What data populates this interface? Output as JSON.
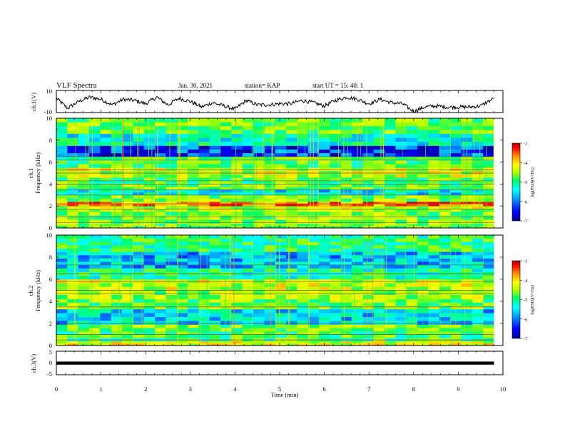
{
  "header": {
    "title": "VLF Spectra",
    "date": "Jan. 30, 2021",
    "station": "station= KAP",
    "start": "start  UT =   15: 40: 1"
  },
  "colors": {
    "waveform": "#000000",
    "axes": "#000000",
    "background": "#ffffff",
    "colormap": [
      "#00008f",
      "#0000ff",
      "#00aaff",
      "#00ffff",
      "#00ff66",
      "#aaff00",
      "#ffff00",
      "#ff8800",
      "#ff0000",
      "#aa0000"
    ]
  },
  "chart_data": [
    {
      "type": "line",
      "name": "ch1-waveform",
      "ylabel": "ch.1(V)",
      "ylim": [
        -10,
        10
      ],
      "yticks": [
        "10",
        "-10"
      ],
      "xlim": [
        0,
        9.8
      ],
      "x_min": [
        0,
        0.25,
        0.5,
        0.75,
        1.0,
        1.25,
        1.5,
        1.75,
        2.0,
        2.25,
        2.5,
        2.75,
        3.0,
        3.25,
        3.5,
        3.75,
        4.0,
        4.25,
        4.5,
        4.75,
        5.0,
        5.25,
        5.5,
        5.75,
        6.0,
        6.25,
        6.5,
        6.75,
        7.0,
        7.25,
        7.5,
        7.75,
        8.0,
        8.25,
        8.5,
        8.75,
        9.0,
        9.25,
        9.5,
        9.8
      ],
      "y": [
        3,
        -6,
        0,
        4,
        2,
        -3,
        2,
        1,
        -2,
        4,
        -3,
        3,
        0,
        -5,
        -1,
        -4,
        -7,
        1,
        -3,
        -3,
        -2,
        -2,
        1,
        -1,
        -4,
        1,
        4,
        2,
        -2,
        2,
        -1,
        -2,
        -9,
        -5,
        -4,
        -5,
        -5,
        -5,
        -4,
        3
      ]
    },
    {
      "type": "heatmap",
      "name": "ch1-spectrogram",
      "ylabel": "ch.1\nFrequency (kHz)",
      "ylim": [
        0,
        10
      ],
      "yticks": [
        "0",
        "2",
        "4",
        "6",
        "8",
        "10"
      ],
      "xlim": [
        0,
        9.8
      ],
      "colorbar": {
        "label": "log(PSD)(V²/Hz)",
        "range": [
          -7,
          -3
        ],
        "ticks": [
          "-3",
          "-4",
          "-5",
          "-6",
          "-7"
        ]
      },
      "bands_khz": [
        {
          "lo": 0.0,
          "hi": 0.4,
          "level": -5.0
        },
        {
          "lo": 0.4,
          "hi": 1.5,
          "level": -4.9
        },
        {
          "lo": 1.5,
          "hi": 2.0,
          "level": -4.6
        },
        {
          "lo": 2.0,
          "hi": 2.4,
          "level": -3.8
        },
        {
          "lo": 2.4,
          "hi": 3.0,
          "level": -4.9
        },
        {
          "lo": 3.0,
          "hi": 3.5,
          "level": -5.7
        },
        {
          "lo": 3.5,
          "hi": 4.0,
          "level": -5.0
        },
        {
          "lo": 4.0,
          "hi": 4.6,
          "level": -5.1
        },
        {
          "lo": 4.6,
          "hi": 5.5,
          "level": -4.6
        },
        {
          "lo": 5.5,
          "hi": 6.5,
          "level": -5.1
        },
        {
          "lo": 6.5,
          "hi": 7.5,
          "level": -6.4
        },
        {
          "lo": 7.5,
          "hi": 8.6,
          "level": -5.6
        },
        {
          "lo": 8.6,
          "hi": 10.0,
          "level": -5.0
        }
      ],
      "lines_khz": [
        0.5,
        1.0,
        1.7,
        2.2,
        3.0,
        3.5,
        4.0,
        4.3,
        5.0,
        5.3,
        6.2,
        6.5
      ]
    },
    {
      "type": "heatmap",
      "name": "ch2-spectrogram",
      "ylabel": "ch.2\nFrequency (kHz)",
      "ylim": [
        0,
        10
      ],
      "yticks": [
        "0",
        "2",
        "4",
        "6",
        "8",
        "10"
      ],
      "xlim": [
        0,
        9.8
      ],
      "colorbar": {
        "label": "log(PSD)(V²/Hz)",
        "range": [
          -7,
          -3
        ],
        "ticks": [
          "-3",
          "-4",
          "-5",
          "-6",
          "-7"
        ]
      },
      "bands_khz": [
        {
          "lo": 0.0,
          "hi": 0.4,
          "level": -4.5
        },
        {
          "lo": 0.4,
          "hi": 1.3,
          "level": -5.2
        },
        {
          "lo": 1.3,
          "hi": 1.9,
          "level": -5.0
        },
        {
          "lo": 1.9,
          "hi": 3.3,
          "level": -5.8
        },
        {
          "lo": 3.3,
          "hi": 4.2,
          "level": -5.0
        },
        {
          "lo": 4.2,
          "hi": 5.0,
          "level": -4.8
        },
        {
          "lo": 5.0,
          "hi": 6.0,
          "level": -4.6
        },
        {
          "lo": 6.0,
          "hi": 7.0,
          "level": -5.4
        },
        {
          "lo": 7.0,
          "hi": 8.5,
          "level": -5.9
        },
        {
          "lo": 8.5,
          "hi": 10.0,
          "level": -5.3
        }
      ],
      "lines_khz": [
        0.5,
        1.0,
        2.0,
        3.5,
        4.7,
        5.0,
        5.8,
        6.5,
        7.3
      ]
    },
    {
      "type": "line",
      "name": "ch3-waveform",
      "ylabel": "ch.3(V)",
      "ylim": [
        -5,
        5
      ],
      "yticks": [
        "5",
        "0",
        "-5"
      ],
      "xlim": [
        0,
        9.8
      ],
      "band_v": [
        -0.7,
        0.6
      ]
    }
  ],
  "xaxis": {
    "label": "Time  (min)",
    "range": [
      0,
      10
    ],
    "ticks": [
      "0",
      "1",
      "2",
      "3",
      "4",
      "5",
      "6",
      "7",
      "8",
      "9",
      "10"
    ]
  }
}
